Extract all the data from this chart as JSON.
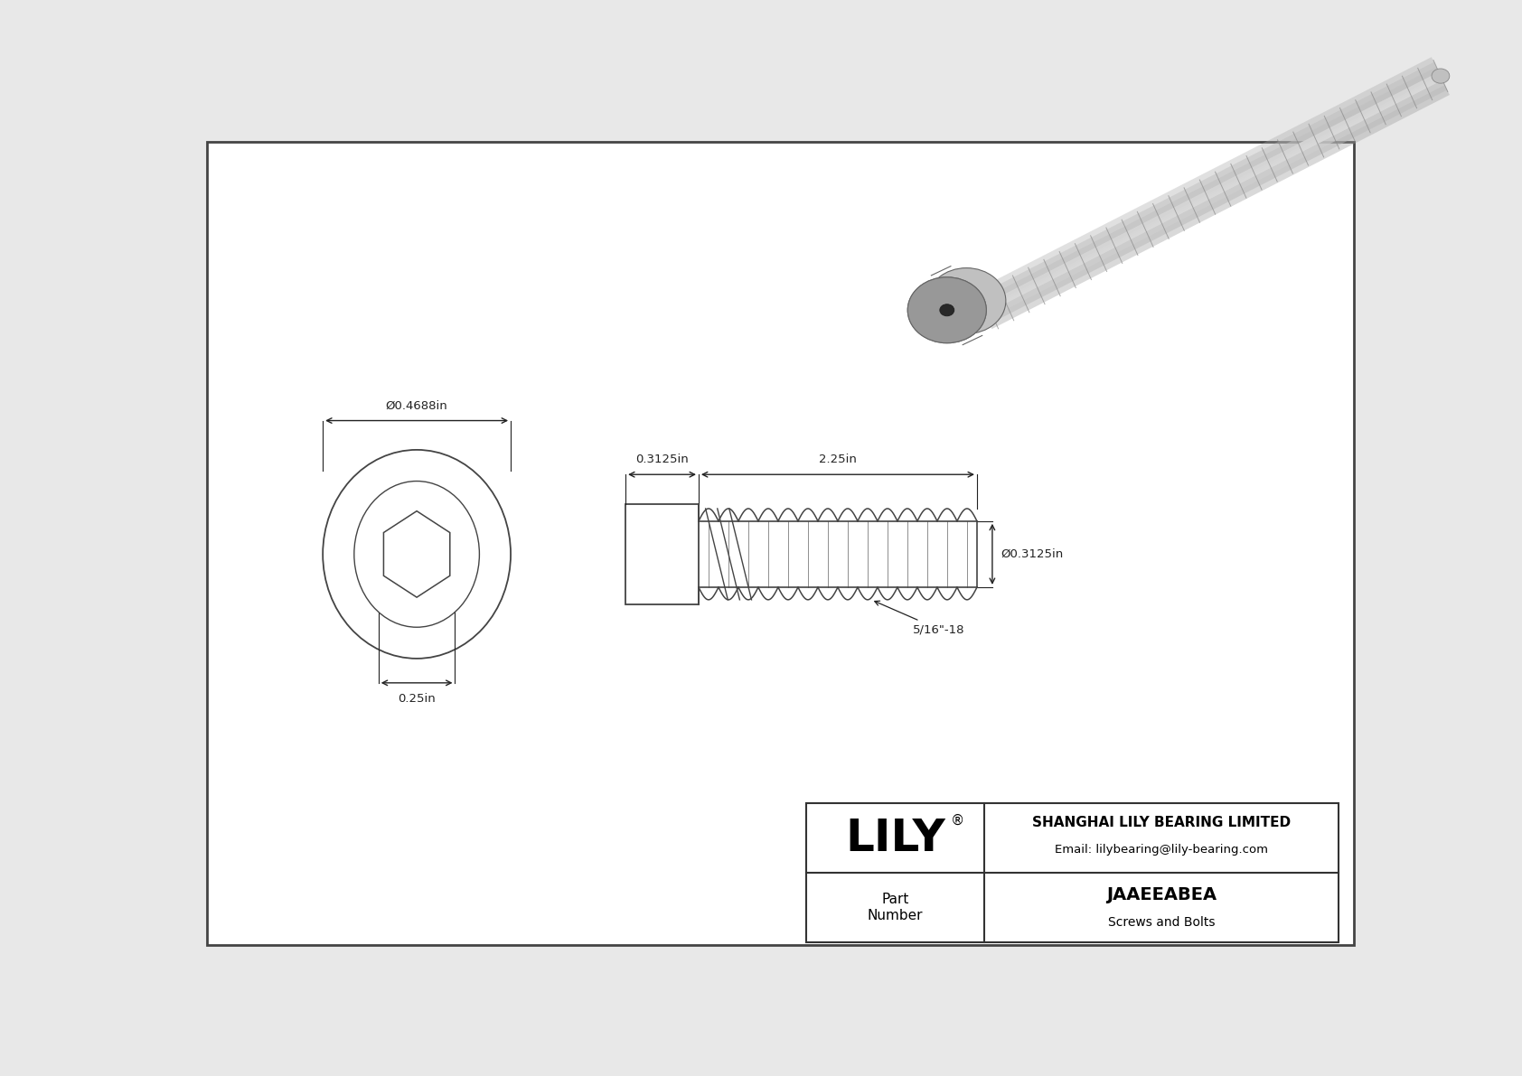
{
  "bg_color": "#e8e8e8",
  "inner_bg": "#ffffff",
  "border_color": "#444444",
  "line_color": "#444444",
  "dim_color": "#222222",
  "title": "JAAEEABEA",
  "subtitle": "Screws and Bolts",
  "company": "SHANGHAI LILY BEARING LIMITED",
  "email": "Email: lilybearing@lily-bearing.com",
  "part_label": "Part\nNumber",
  "logo": "LILY",
  "head_dia": "Ø0.4688in",
  "head_socket": "0.25in",
  "shank_len": "0.3125in",
  "thread_len": "2.25in",
  "thread_dia": "Ø0.3125in",
  "thread_spec": "5/16\"-18",
  "fig_width": 16.84,
  "fig_height": 11.91
}
